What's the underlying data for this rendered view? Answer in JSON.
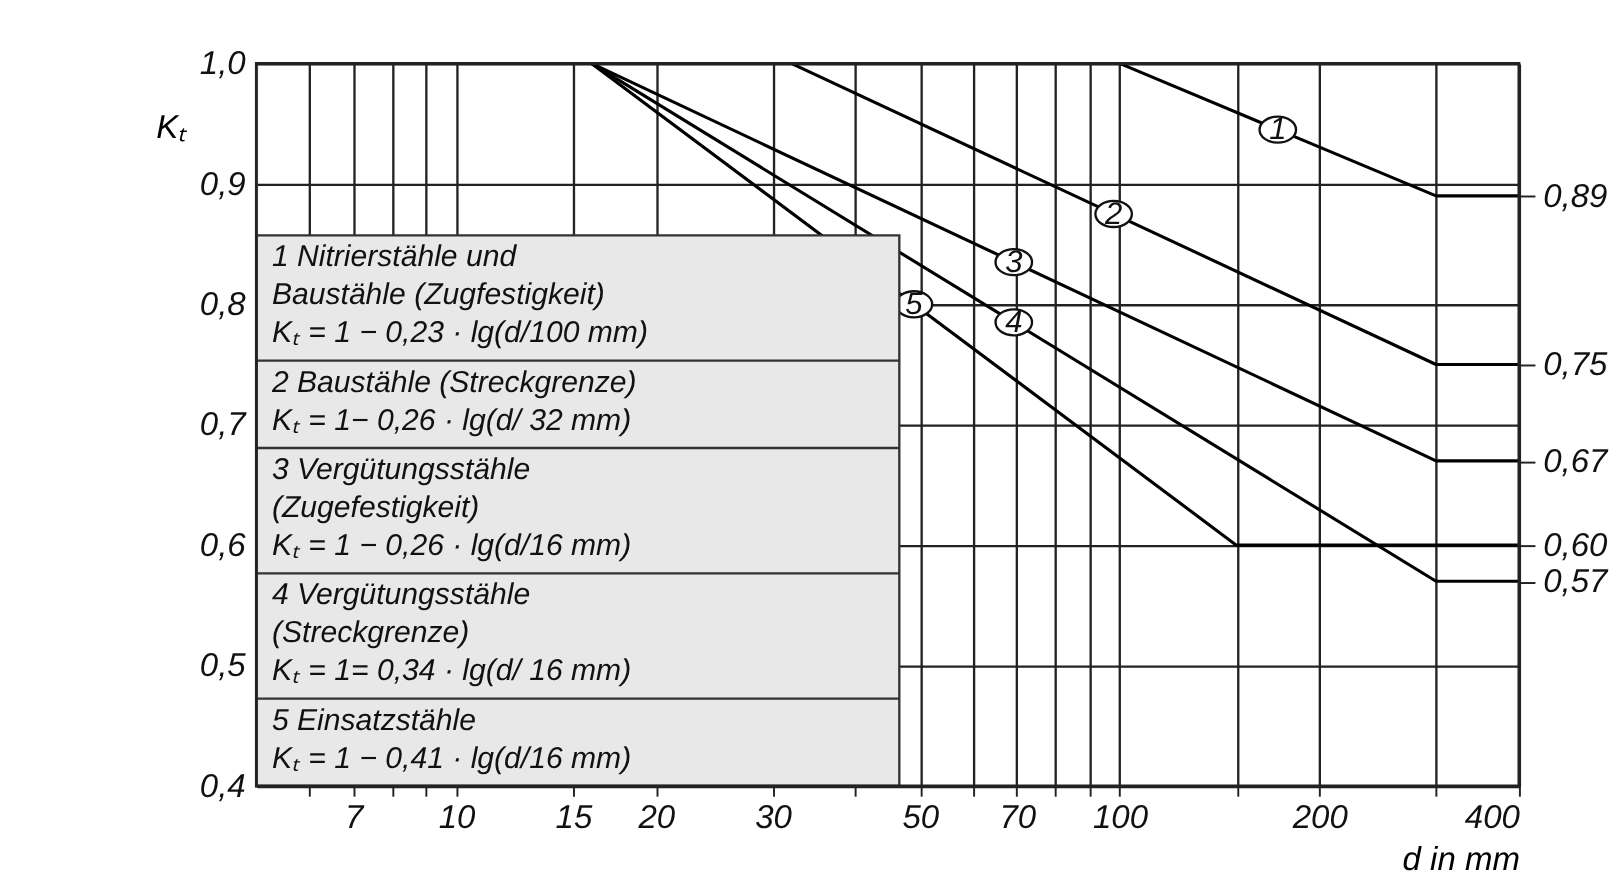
{
  "chart_data": {
    "type": "line",
    "xlabel": "d in mm",
    "ylabel": "Kₜ",
    "series": [
      {
        "name": "1",
        "color": "#000000",
        "x": [
          100,
          300,
          400
        ],
        "values": [
          1.0,
          0.89,
          0.89
        ]
      },
      {
        "name": "2",
        "color": "#000000",
        "x": [
          32,
          300,
          400
        ],
        "values": [
          1.0,
          0.75,
          0.75
        ]
      },
      {
        "name": "3",
        "color": "#000000",
        "x": [
          16,
          300,
          400
        ],
        "values": [
          1.0,
          0.67,
          0.67
        ]
      },
      {
        "name": "4",
        "color": "#000000",
        "x": [
          16,
          300,
          400
        ],
        "values": [
          1.0,
          0.57,
          0.57
        ]
      },
      {
        "name": "5",
        "color": "#000000",
        "x": [
          16,
          150,
          400
        ],
        "values": [
          1.0,
          0.6,
          0.6
        ]
      }
    ],
    "log": "x",
    "xlim": [
      5,
      400
    ],
    "xticks": [
      {
        "value": 6,
        "label": null
      },
      7,
      {
        "value": 8,
        "label": null
      },
      {
        "value": 9,
        "label": null
      },
      10,
      15,
      20,
      30,
      {
        "value": 40,
        "label": null
      },
      50,
      {
        "value": 60,
        "label": null
      },
      70,
      {
        "value": 80,
        "label": null
      },
      {
        "value": 90,
        "label": null
      },
      100,
      {
        "value": 150,
        "label": null
      },
      200,
      {
        "value": 300,
        "label": null
      },
      400
    ],
    "ylim": [
      0.4,
      1.0
    ],
    "yticks": [
      {
        "value": 0.4,
        "label": "0,4"
      },
      {
        "value": 0.5,
        "label": "0,5"
      },
      {
        "value": 0.6,
        "label": "0,6"
      },
      {
        "value": 0.7,
        "label": "0,7"
      },
      {
        "value": 0.8,
        "label": "0,8"
      },
      {
        "value": 0.9,
        "label": "0,9"
      },
      {
        "value": 1.0,
        "label": "1,0"
      }
    ],
    "y2lim": [
      0.4,
      1.0
    ],
    "y2ticks": [
      {
        "value": 0.89,
        "label": "0,89"
      },
      {
        "value": 0.75,
        "label": "0,75"
      },
      {
        "value": 0.67,
        "label": "0,67"
      },
      {
        "value": 0.6,
        "label": "0,60"
      },
      {
        "value": 0.57,
        "label": "0,57"
      }
    ],
    "grid": true,
    "line_style": "solid",
    "marker": "none",
    "annotations": [
      "1 Nitrierstähle   und\n   Baustähle    (Zugfestigkeit)\n   Kₜ = 1 − 0,23 · lg(d/100 mm)",
      "2 Baustähle (Streckgrenze)\n   Kₜ = 1− 0,26 · lg(d/ 32 mm)",
      "3 Vergütungsstähle\n   (Zugefestigkeit)\n   Kₜ = 1 − 0,26 · lg(d/16 mm)",
      "4 Vergütungsstähle\n   (Streckgrenze)\n   Kₜ = 1= 0,34 · lg(d/ 16 mm)",
      "5 Einsatzstähle\n   Kₜ = 1 − 0,41 · lg(d/16 mm)"
    ]
  }
}
